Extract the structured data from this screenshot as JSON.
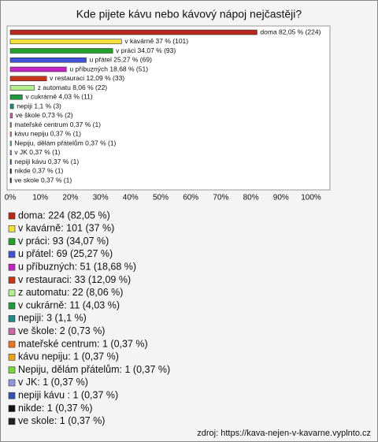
{
  "chart_data": {
    "type": "bar",
    "orientation": "horizontal",
    "title": "Kde pijete kávu nebo kávový nápoj nejčastěji?",
    "categories": [
      "doma",
      "v kavárně",
      "v práci",
      "u přátel",
      "u příbuzných",
      "v restauraci",
      "z automatu",
      "v cukrárně",
      "nepiji",
      "ve škole",
      "mateřské centrum",
      "kávu nepiju",
      "Nepiju, dělám přátelům",
      " v JK",
      "nepiji kávu ",
      "nikde",
      "ve skole"
    ],
    "values": [
      82.05,
      37,
      34.07,
      25.27,
      18.68,
      12.09,
      8.06,
      4.03,
      1.1,
      0.73,
      0.37,
      0.37,
      0.37,
      0.37,
      0.37,
      0.37,
      0.37
    ],
    "value_labels": [
      "doma 82,05 % (224)",
      "v kavárně 37 % (101)",
      "v práci 34,07 % (93)",
      "u přátel 25,27 % (69)",
      "u příbuzných 18,68 % (51)",
      "v restauraci 12,09 % (33)",
      "z automatu 8,06 % (22)",
      "v cukrárně 4,03 % (11)",
      "nepiji 1,1 % (3)",
      "ve škole 0,73 % (2)",
      "mateřské centrum 0,37 % (1)",
      "kávu nepiju 0,37 % (1)",
      "Nepiju, dělám přátelům 0,37 % (1)",
      " v JK 0,37 % (1)",
      "nepiji kávu  0,37 % (1)",
      "nikde 0,37 % (1)",
      "ve skole 0,37 % (1)"
    ],
    "legend_labels": [
      "doma: 224 (82,05 %)",
      "v kavárně: 101 (37 %)",
      "v práci: 93 (34,07 %)",
      "u přátel: 69 (25,27 %)",
      "u příbuzných: 51 (18,68 %)",
      "v restauraci: 33 (12,09 %)",
      "z automatu: 22 (8,06 %)",
      "v cukrárně: 11 (4,03 %)",
      "nepiji: 3 (1,1 %)",
      "ve škole: 2 (0,73 %)",
      "mateřské centrum: 1 (0,37 %)",
      "kávu nepiju: 1 (0,37 %)",
      "Nepiju, dělám přátelům: 1 (0,37 %)",
      " v JK: 1 (0,37 %)",
      "nepiji kávu : 1 (0,37 %)",
      "nikde: 1 (0,37 %)",
      "ve skole: 1 (0,37 %)"
    ],
    "colors": [
      "#b8281c",
      "#f2e040",
      "#22a02a",
      "#3f52d8",
      "#c424c4",
      "#c8361a",
      "#b4ec90",
      "#1e9a3c",
      "#1f8a8a",
      "#c868a8",
      "#e87722",
      "#e8a620",
      "#7ad83a",
      "#8c98d8",
      "#3450b8",
      "#111111",
      "#222222"
    ],
    "xlim": [
      0,
      100
    ],
    "xticks": [
      {
        "value": 0,
        "label": "0%"
      },
      {
        "value": 10,
        "label": "10%"
      },
      {
        "value": 20,
        "label": "20%"
      },
      {
        "value": 30,
        "label": "30%"
      },
      {
        "value": 40,
        "label": "40%"
      },
      {
        "value": 50,
        "label": "50%"
      },
      {
        "value": 60,
        "label": "60%"
      },
      {
        "value": 70,
        "label": "70%"
      },
      {
        "value": 80,
        "label": "80%"
      },
      {
        "value": 90,
        "label": "90%"
      },
      {
        "value": 100,
        "label": "100%"
      }
    ],
    "source": "zdroj: https://kava-nejen-v-kavarne.vyplnto.cz"
  }
}
